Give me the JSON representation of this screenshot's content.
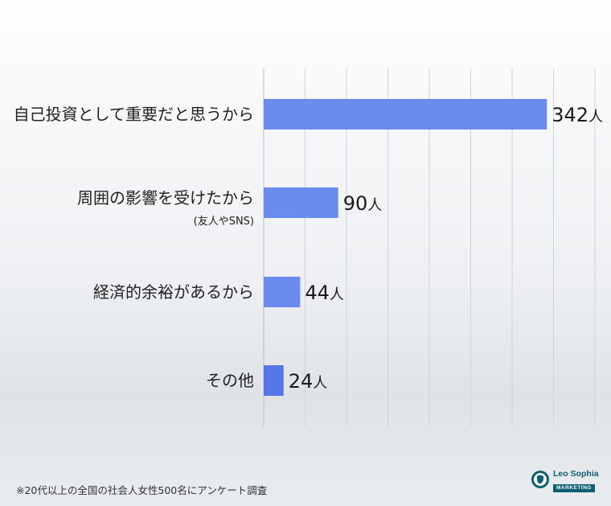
{
  "chart_data": {
    "type": "bar",
    "orientation": "horizontal",
    "categories": [
      {
        "label": "自己投資として重要だと思うから",
        "sublabel": ""
      },
      {
        "label": "周囲の影響を受けたから",
        "sublabel": "(友人やSNS)"
      },
      {
        "label": "経済的余裕があるから",
        "sublabel": ""
      },
      {
        "label": "その他",
        "sublabel": ""
      }
    ],
    "values": [
      342,
      90,
      44,
      24
    ],
    "value_unit": "人",
    "xlim": [
      0,
      400
    ],
    "grid": true,
    "bar_colors": [
      "#6b8bee",
      "#6b8bee",
      "#6b8bee",
      "#5576e6"
    ]
  },
  "footnote": "※20代以上の全国の社会人女性500名にアンケート調査",
  "logo": {
    "name": "Leo Sophia",
    "badge": "MARKETING",
    "primary_color": "#0d5e6e"
  }
}
